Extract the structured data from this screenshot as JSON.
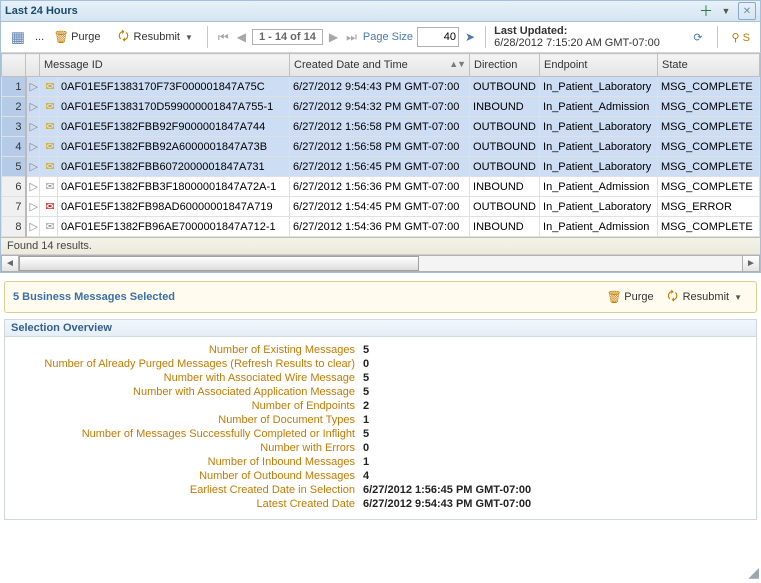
{
  "title": "Last 24 Hours",
  "toolbar": {
    "purge_label": "Purge",
    "resubmit_label": "Resubmit",
    "range": "1 - 14 of 14",
    "page_size_label": "Page Size",
    "page_size_value": "40",
    "last_updated_label": "Last Updated:",
    "last_updated_value": "6/28/2012 7:15:20 AM GMT-07:00"
  },
  "columns": {
    "msgid": "Message ID",
    "created": "Created Date and Time",
    "direction": "Direction",
    "endpoint": "Endpoint",
    "state": "State"
  },
  "rows": [
    {
      "n": "1",
      "sel": true,
      "env": "yellow",
      "id": "0AF01E5F1383170F73F000001847A75C",
      "created": "6/27/2012 9:54:43 PM GMT-07:00",
      "dir": "OUTBOUND",
      "ep": "In_Patient_Laboratory",
      "state": "MSG_COMPLETE"
    },
    {
      "n": "2",
      "sel": true,
      "env": "yellow",
      "id": "0AF01E5F1383170D599000001847A755-1",
      "created": "6/27/2012 9:54:32 PM GMT-07:00",
      "dir": "INBOUND",
      "ep": "In_Patient_Admission",
      "state": "MSG_COMPLETE"
    },
    {
      "n": "3",
      "sel": true,
      "env": "yellow",
      "id": "0AF01E5F1382FBB92F9000001847A744",
      "created": "6/27/2012 1:56:58 PM GMT-07:00",
      "dir": "OUTBOUND",
      "ep": "In_Patient_Laboratory",
      "state": "MSG_COMPLETE"
    },
    {
      "n": "4",
      "sel": true,
      "env": "yellow",
      "id": "0AF01E5F1382FBB92A6000001847A73B",
      "created": "6/27/2012 1:56:58 PM GMT-07:00",
      "dir": "OUTBOUND",
      "ep": "In_Patient_Laboratory",
      "state": "MSG_COMPLETE"
    },
    {
      "n": "5",
      "sel": true,
      "env": "yellow",
      "id": "0AF01E5F1382FBB6072000001847A731",
      "created": "6/27/2012 1:56:45 PM GMT-07:00",
      "dir": "OUTBOUND",
      "ep": "In_Patient_Laboratory",
      "state": "MSG_COMPLETE"
    },
    {
      "n": "6",
      "sel": false,
      "env": "white",
      "id": "0AF01E5F1382FBB3F18000001847A72A-1",
      "created": "6/27/2012 1:56:36 PM GMT-07:00",
      "dir": "INBOUND",
      "ep": "In_Patient_Admission",
      "state": "MSG_COMPLETE"
    },
    {
      "n": "7",
      "sel": false,
      "env": "red",
      "id": "0AF01E5F1382FB98AD60000001847A719",
      "created": "6/27/2012 1:54:45 PM GMT-07:00",
      "dir": "OUTBOUND",
      "ep": "In_Patient_Laboratory",
      "state": "MSG_ERROR"
    },
    {
      "n": "8",
      "sel": false,
      "env": "white",
      "id": "0AF01E5F1382FB96AE7000001847A712-1",
      "created": "6/27/2012 1:54:36 PM GMT-07:00",
      "dir": "INBOUND",
      "ep": "In_Patient_Admission",
      "state": "MSG_COMPLETE"
    }
  ],
  "results_text": "Found 14 results.",
  "selection": {
    "summary": "5 Business Messages Selected",
    "purge_label": "Purge",
    "resubmit_label": "Resubmit"
  },
  "overview": {
    "header": "Selection Overview",
    "items": [
      {
        "label": "Number of Existing Messages",
        "value": "5"
      },
      {
        "label": "Number of Already Purged Messages (Refresh Results to clear)",
        "value": "0"
      },
      {
        "label": "Number with Associated Wire Message",
        "value": "5"
      },
      {
        "label": "Number with Associated Application Message",
        "value": "5"
      },
      {
        "label": "Number of Endpoints",
        "value": "2"
      },
      {
        "label": "Number of Document Types",
        "value": "1"
      },
      {
        "label": "Number of Messages Successfully Completed or Inflight",
        "value": "5"
      },
      {
        "label": "Number with Errors",
        "value": "0"
      },
      {
        "label": "Number of Inbound Messages",
        "value": "1"
      },
      {
        "label": "Number of Outbound Messages",
        "value": "4"
      },
      {
        "label": "Earliest Created Date in Selection",
        "value": "6/27/2012 1:56:45 PM GMT-07:00"
      },
      {
        "label": "Latest Created Date",
        "value": "6/27/2012 9:54:43 PM GMT-07:00"
      }
    ]
  },
  "colors": {
    "sel_bg": "#cdddf3",
    "header_grad_top": "#e8f1f9",
    "header_grad_bot": "#d4e5f1",
    "link": "#3a70a8",
    "orange": "#c47a00"
  }
}
